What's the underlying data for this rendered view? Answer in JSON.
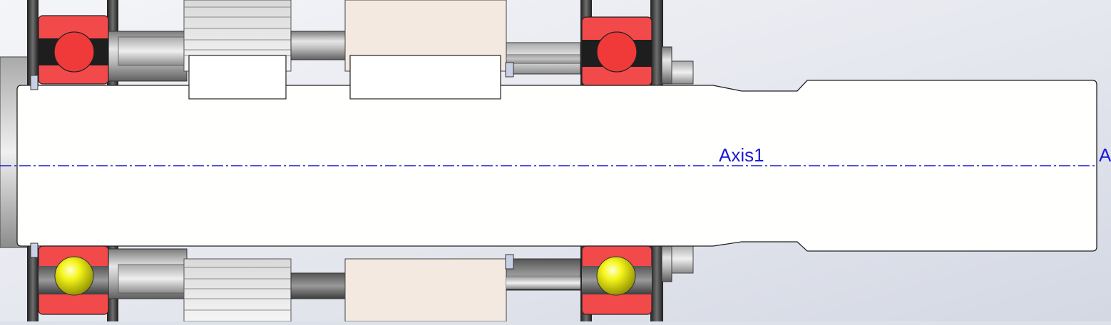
{
  "viewport": {
    "background_top": "#d6dbe6",
    "background_bottom": "#eceef3"
  },
  "labels": {
    "axis_primary": "Axis1",
    "axis_secondary": "A"
  },
  "colors": {
    "axis_line": "#1b1bd6",
    "bearing_race": "#f24a4a",
    "bearing_ball_section": "#f03a3a",
    "bearing_ball_shaded": "#f2f215",
    "shaft": "#fffffd",
    "gear_hub": "#f4e9e1",
    "housing_dark": "#2b2b2b",
    "steel": "#bdbdbd"
  }
}
